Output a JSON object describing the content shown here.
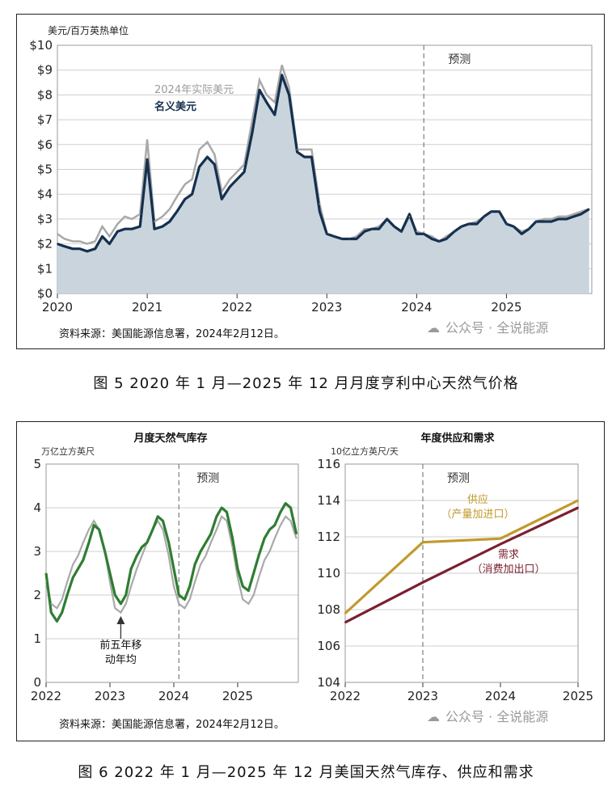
{
  "captions": {
    "fig5": "图 5  2020 年 1 月—2025 年 12 月月度亨利中心天然气价格",
    "fig6": "图 6  2022 年 1 月—2025 年 12 月美国天然气库存、供应和需求"
  },
  "colors": {
    "navy": "#15304f",
    "gray_line": "#a9a9a9",
    "area_fill": "#c9d4dc",
    "green": "#2f7d32",
    "gold": "#c19a2b",
    "maroon": "#7a2030"
  },
  "chart_data": [
    {
      "id": "henry_hub_price",
      "type": "area",
      "unit_label": "美元/百万英热单位",
      "x": [
        2020.0,
        2020.08,
        2020.17,
        2020.25,
        2020.33,
        2020.42,
        2020.5,
        2020.58,
        2020.67,
        2020.75,
        2020.83,
        2020.92,
        2021.0,
        2021.08,
        2021.17,
        2021.25,
        2021.33,
        2021.42,
        2021.5,
        2021.58,
        2021.67,
        2021.75,
        2021.83,
        2021.92,
        2022.0,
        2022.08,
        2022.17,
        2022.25,
        2022.33,
        2022.42,
        2022.5,
        2022.58,
        2022.67,
        2022.75,
        2022.83,
        2022.92,
        2023.0,
        2023.08,
        2023.17,
        2023.25,
        2023.33,
        2023.42,
        2023.5,
        2023.58,
        2023.67,
        2023.75,
        2023.83,
        2023.92,
        2024.0,
        2024.08,
        2024.17,
        2024.25,
        2024.33,
        2024.42,
        2024.5,
        2024.58,
        2024.67,
        2024.75,
        2024.83,
        2024.92,
        2025.0,
        2025.08,
        2025.17,
        2025.25,
        2025.33,
        2025.42,
        2025.5,
        2025.58,
        2025.67,
        2025.75,
        2025.83,
        2025.92
      ],
      "xlim": [
        2020,
        2025.95
      ],
      "ylim": [
        0,
        10
      ],
      "x_ticks": [
        "2020",
        "2021",
        "2022",
        "2023",
        "2024",
        "2025"
      ],
      "y_ticks": [
        "$0",
        "$1",
        "$2",
        "$3",
        "$4",
        "$5",
        "$6",
        "$7",
        "$8",
        "$9",
        "$10"
      ],
      "series": [
        {
          "name": "2024年实际美元",
          "values": [
            2.4,
            2.2,
            2.1,
            2.1,
            2.0,
            2.1,
            2.7,
            2.3,
            2.8,
            3.1,
            3.0,
            3.2,
            6.2,
            2.9,
            3.1,
            3.4,
            3.9,
            4.4,
            4.6,
            5.8,
            6.1,
            5.6,
            4.1,
            4.6,
            4.9,
            5.2,
            7.0,
            8.6,
            8.0,
            7.7,
            9.2,
            8.3,
            5.8,
            5.8,
            5.8,
            3.6,
            2.4,
            2.3,
            2.2,
            2.2,
            2.3,
            2.6,
            2.6,
            2.7,
            3.0,
            2.7,
            2.5,
            3.1,
            2.5,
            2.4,
            2.3,
            2.1,
            2.3,
            2.5,
            2.7,
            2.8,
            2.9,
            3.1,
            3.3,
            3.3,
            2.8,
            2.7,
            2.5,
            2.6,
            2.9,
            3.0,
            3.0,
            3.1,
            3.1,
            3.2,
            3.3,
            3.4
          ]
        },
        {
          "name": "名义美元",
          "values": [
            2.0,
            1.9,
            1.8,
            1.8,
            1.7,
            1.8,
            2.3,
            2.0,
            2.5,
            2.6,
            2.6,
            2.7,
            5.4,
            2.6,
            2.7,
            2.9,
            3.3,
            3.8,
            4.0,
            5.1,
            5.5,
            5.2,
            3.8,
            4.3,
            4.6,
            4.9,
            6.5,
            8.2,
            7.7,
            7.2,
            8.8,
            8.0,
            5.7,
            5.5,
            5.5,
            3.3,
            2.4,
            2.3,
            2.2,
            2.2,
            2.2,
            2.5,
            2.6,
            2.6,
            3.0,
            2.7,
            2.5,
            3.2,
            2.4,
            2.4,
            2.2,
            2.1,
            2.2,
            2.5,
            2.7,
            2.8,
            2.8,
            3.1,
            3.3,
            3.3,
            2.8,
            2.7,
            2.4,
            2.6,
            2.9,
            2.9,
            2.9,
            3.0,
            3.0,
            3.1,
            3.2,
            3.4
          ]
        }
      ],
      "forecast_start": 2024.08,
      "forecast_label": "预测",
      "source": "资料来源：美国能源信息署，2024年2月12日。",
      "watermark": "公众号 · 全说能源"
    },
    {
      "id": "storage",
      "type": "line",
      "title": "月度天然气库存",
      "unit_label": "万亿立方英尺",
      "x": [
        2022.0,
        2022.08,
        2022.17,
        2022.25,
        2022.33,
        2022.42,
        2022.5,
        2022.58,
        2022.67,
        2022.75,
        2022.83,
        2022.92,
        2023.0,
        2023.08,
        2023.17,
        2023.25,
        2023.33,
        2023.42,
        2023.5,
        2023.58,
        2023.67,
        2023.75,
        2023.83,
        2023.92,
        2024.0,
        2024.08,
        2024.17,
        2024.25,
        2024.33,
        2024.42,
        2024.5,
        2024.58,
        2024.67,
        2024.75,
        2024.83,
        2024.92,
        2025.0,
        2025.08,
        2025.17,
        2025.25,
        2025.33,
        2025.42,
        2025.5,
        2025.58,
        2025.67,
        2025.75,
        2025.83,
        2025.92
      ],
      "xlim": [
        2022,
        2025.95
      ],
      "ylim": [
        0,
        5
      ],
      "x_ticks": [
        "2022",
        "2023",
        "2024",
        "2025"
      ],
      "y_ticks": [
        "0",
        "1",
        "2",
        "3",
        "4",
        "5"
      ],
      "series": [
        {
          "name": "前五年移动年均",
          "values": [
            2.3,
            1.8,
            1.7,
            1.9,
            2.3,
            2.7,
            2.9,
            3.2,
            3.5,
            3.7,
            3.5,
            3.0,
            2.3,
            1.7,
            1.6,
            1.8,
            2.2,
            2.6,
            2.9,
            3.2,
            3.5,
            3.7,
            3.5,
            2.9,
            2.2,
            1.8,
            1.7,
            1.9,
            2.3,
            2.7,
            2.9,
            3.2,
            3.5,
            3.8,
            3.7,
            3.1,
            2.4,
            1.9,
            1.8,
            2.0,
            2.4,
            2.8,
            3.0,
            3.3,
            3.6,
            3.8,
            3.7,
            3.3
          ]
        },
        {
          "name": "storage",
          "values": [
            2.5,
            1.6,
            1.4,
            1.6,
            2.0,
            2.4,
            2.6,
            2.8,
            3.2,
            3.6,
            3.5,
            3.0,
            2.5,
            2.0,
            1.8,
            2.0,
            2.6,
            2.9,
            3.1,
            3.2,
            3.5,
            3.8,
            3.7,
            3.2,
            2.6,
            2.0,
            1.9,
            2.2,
            2.7,
            3.0,
            3.2,
            3.4,
            3.8,
            4.0,
            3.9,
            3.3,
            2.6,
            2.2,
            2.1,
            2.5,
            2.9,
            3.3,
            3.5,
            3.6,
            3.9,
            4.1,
            4.0,
            3.4
          ]
        }
      ],
      "forecast_start": 2024.08,
      "forecast_label": "预测",
      "annotation": "前五年移\n动年均",
      "source": "资料来源：美国能源信息署，2024年2月12日。"
    },
    {
      "id": "supply_demand",
      "type": "line",
      "title": "年度供应和需求",
      "unit_label": "10亿立方英尺/天",
      "x": [
        2022,
        2023,
        2024,
        2025
      ],
      "xlim": [
        2022,
        2025
      ],
      "ylim": [
        104,
        116
      ],
      "x_ticks": [
        "2022",
        "2023",
        "2024",
        "2025"
      ],
      "y_ticks": [
        "104",
        "106",
        "108",
        "110",
        "112",
        "114",
        "116"
      ],
      "series": [
        {
          "name": "供应\n（产量加进口）",
          "values": [
            107.8,
            111.7,
            111.9,
            114.0
          ]
        },
        {
          "name": "需求\n（消费加出口）",
          "values": [
            107.3,
            109.5,
            111.6,
            113.6
          ]
        }
      ],
      "forecast_start": 2023,
      "forecast_label": "预测",
      "watermark": "公众号 · 全说能源"
    }
  ]
}
